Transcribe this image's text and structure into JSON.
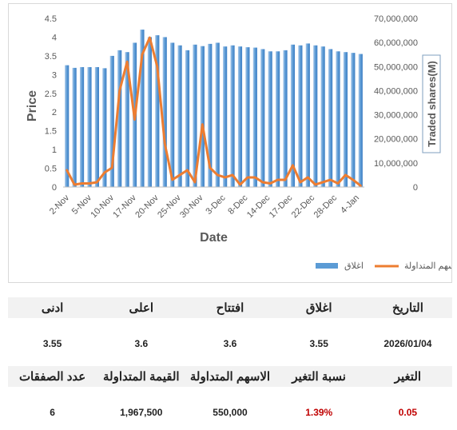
{
  "chart_data": {
    "type": "bar+line",
    "xlabel": "Date",
    "ylabel": "Price",
    "y2label": "Traded shares(M)",
    "ylim": [
      0,
      4.5
    ],
    "y2lim": [
      0,
      70000000
    ],
    "yticks": [
      "0",
      "0.5",
      "1",
      "1.5",
      "2",
      "2.5",
      "3",
      "3.5",
      "4",
      "4.5"
    ],
    "y2ticks": [
      "0",
      "10,000,000",
      "20,000,000",
      "30,000,000",
      "40,000,000",
      "50,000,000",
      "60,000,000",
      "70,000,000"
    ],
    "legend_position": "bottom-right",
    "x_tick_labels": [
      "2-Nov",
      "5-Nov",
      "10-Nov",
      "17-Nov",
      "20-Nov",
      "25-Nov",
      "30-Nov",
      "3-Dec",
      "8-Dec",
      "14-Dec",
      "17-Dec",
      "22-Dec",
      "28-Dec",
      "4-Jan"
    ],
    "series": [
      {
        "name": "اغلاق",
        "kind": "bar",
        "color": "#5b9bd5",
        "values": [
          3.25,
          3.18,
          3.2,
          3.2,
          3.2,
          3.17,
          3.5,
          3.65,
          3.6,
          3.85,
          4.2,
          4.0,
          4.05,
          4.0,
          3.85,
          3.78,
          3.65,
          3.8,
          3.76,
          3.82,
          3.85,
          3.75,
          3.78,
          3.75,
          3.73,
          3.72,
          3.68,
          3.62,
          3.62,
          3.65,
          3.8,
          3.78,
          3.83,
          3.78,
          3.75,
          3.68,
          3.62,
          3.6,
          3.58,
          3.55
        ]
      },
      {
        "name": "الاسهم المتداولة",
        "kind": "line",
        "color": "#ed7d31",
        "values": [
          7000000,
          1000000,
          1500000,
          1500000,
          2000000,
          6000000,
          8000000,
          40000000,
          52000000,
          28000000,
          55000000,
          62000000,
          50000000,
          18000000,
          3000000,
          5000000,
          7000000,
          2000000,
          26000000,
          8000000,
          5000000,
          4000000,
          5000000,
          1000000,
          4000000,
          4000000,
          2000000,
          1500000,
          3000000,
          3000000,
          9000000,
          2000000,
          4000000,
          1000000,
          2000000,
          3000000,
          1500000,
          5000000,
          3000000,
          550000
        ]
      }
    ]
  },
  "stats": {
    "header1": [
      "التاريخ",
      "اغلاق",
      "افتتاح",
      "اعلى",
      "ادنى"
    ],
    "values1": [
      "2026/01/04",
      "3.55",
      "3.6",
      "3.6",
      "3.55"
    ],
    "header2": [
      "التغير",
      "نسبة التغير",
      "الاسهم المتداولة",
      "القيمة المتداولة",
      "عدد الصفقات"
    ],
    "values2": [
      "0.05",
      "1.39%",
      "550,000",
      "1,967,500",
      "6"
    ],
    "accent_red": "#c00000"
  }
}
